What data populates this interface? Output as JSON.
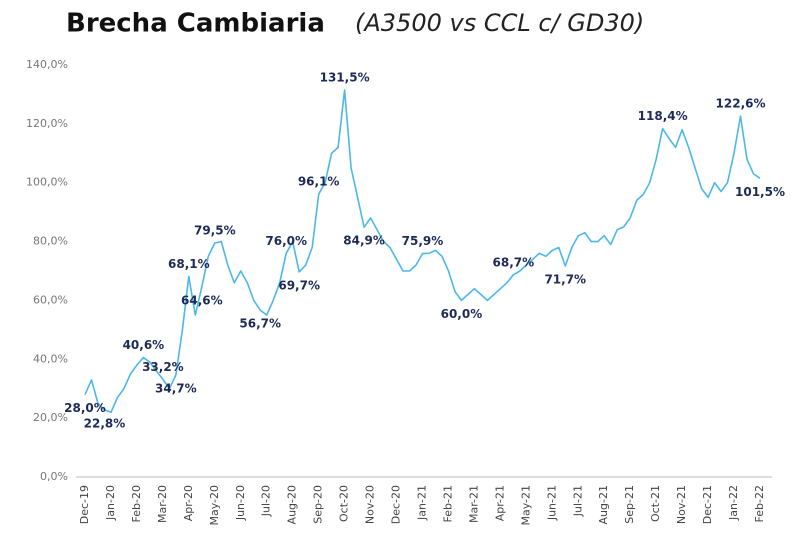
{
  "chart_data": {
    "type": "line",
    "title": "Brecha Cambiaria",
    "subtitle": "(A3500 vs CCL c/ GD30)",
    "categories": [
      "Dec-19",
      null,
      null,
      null,
      "Jan-20",
      null,
      null,
      null,
      "Feb-20",
      null,
      null,
      null,
      "Mar-20",
      null,
      null,
      null,
      "Apr-20",
      null,
      null,
      null,
      "May-20",
      null,
      null,
      null,
      "Jun-20",
      null,
      null,
      null,
      "Jul-20",
      null,
      null,
      null,
      "Aug-20",
      null,
      null,
      null,
      "Sep-20",
      null,
      null,
      null,
      "Oct-20",
      null,
      null,
      null,
      "Nov-20",
      null,
      null,
      null,
      "Dec-20",
      null,
      null,
      null,
      "Jan-21",
      null,
      null,
      null,
      "Feb-21",
      null,
      null,
      null,
      "Mar-21",
      null,
      null,
      null,
      "Apr-21",
      null,
      null,
      null,
      "May-21",
      null,
      null,
      null,
      "Jun-21",
      null,
      null,
      null,
      "Jul-21",
      null,
      null,
      null,
      "Aug-21",
      null,
      null,
      null,
      "Sep-21",
      null,
      null,
      null,
      "Oct-21",
      null,
      null,
      null,
      "Nov-21",
      null,
      null,
      null,
      "Dec-21",
      null,
      null,
      null,
      "Jan-22",
      null,
      null,
      null,
      "Feb-22"
    ],
    "values": [
      28.0,
      33,
      25,
      22.8,
      22,
      27,
      30,
      35,
      38,
      40.6,
      39,
      36,
      33.2,
      30,
      34.7,
      50,
      68.1,
      55,
      64.6,
      75,
      79.5,
      80,
      72,
      66,
      70,
      66,
      60,
      56.7,
      55,
      60,
      66,
      76.0,
      80,
      69.7,
      72,
      78,
      96.1,
      100,
      110,
      112,
      131.5,
      105,
      95,
      84.9,
      88,
      84,
      80,
      78,
      74,
      70,
      70,
      72,
      75.9,
      76,
      77,
      75,
      70,
      63,
      60.0,
      62,
      64,
      62,
      60,
      62,
      64,
      66,
      68.7,
      70,
      72,
      74,
      76,
      75,
      77,
      78,
      71.7,
      78,
      82,
      83,
      80,
      80,
      82,
      79,
      84,
      85,
      88,
      94,
      96,
      100,
      108,
      118.4,
      115,
      112,
      118,
      112,
      105,
      98,
      95,
      100,
      97,
      100,
      110,
      122.6,
      108,
      103,
      101.5
    ],
    "value_labels": [
      "28,0%",
      null,
      null,
      "22,8%",
      null,
      null,
      null,
      null,
      null,
      "40,6%",
      null,
      null,
      "33,2%",
      null,
      "34,7%",
      null,
      "68,1%",
      null,
      "64,6%",
      null,
      "79,5%",
      null,
      null,
      null,
      null,
      null,
      null,
      "56,7%",
      null,
      null,
      null,
      "76,0%",
      null,
      "69,7%",
      null,
      null,
      "96,1%",
      null,
      null,
      null,
      "131,5%",
      null,
      null,
      "84,9%",
      null,
      null,
      null,
      null,
      null,
      null,
      null,
      null,
      "75,9%",
      null,
      null,
      null,
      null,
      null,
      "60,0%",
      null,
      null,
      null,
      null,
      null,
      null,
      null,
      "68,7%",
      null,
      null,
      null,
      null,
      null,
      null,
      null,
      "71,7%",
      null,
      null,
      null,
      null,
      null,
      null,
      null,
      null,
      null,
      null,
      null,
      null,
      null,
      null,
      "118,4%",
      null,
      null,
      null,
      null,
      null,
      null,
      null,
      null,
      null,
      null,
      null,
      "122,6%",
      null,
      null,
      "101,5%"
    ],
    "color": "#4cb8ea",
    "ylim": [
      0,
      140
    ],
    "yticks": [
      {
        "value": 0,
        "label": "0,0%"
      },
      {
        "value": 20,
        "label": "20,0%"
      },
      {
        "value": 40,
        "label": "40,0%"
      },
      {
        "value": 60,
        "label": "60,0%"
      },
      {
        "value": 80,
        "label": "80,0%"
      },
      {
        "value": 100,
        "label": "100,0%"
      },
      {
        "value": 120,
        "label": "120,0%"
      },
      {
        "value": 140,
        "label": "140,0%"
      }
    ]
  }
}
